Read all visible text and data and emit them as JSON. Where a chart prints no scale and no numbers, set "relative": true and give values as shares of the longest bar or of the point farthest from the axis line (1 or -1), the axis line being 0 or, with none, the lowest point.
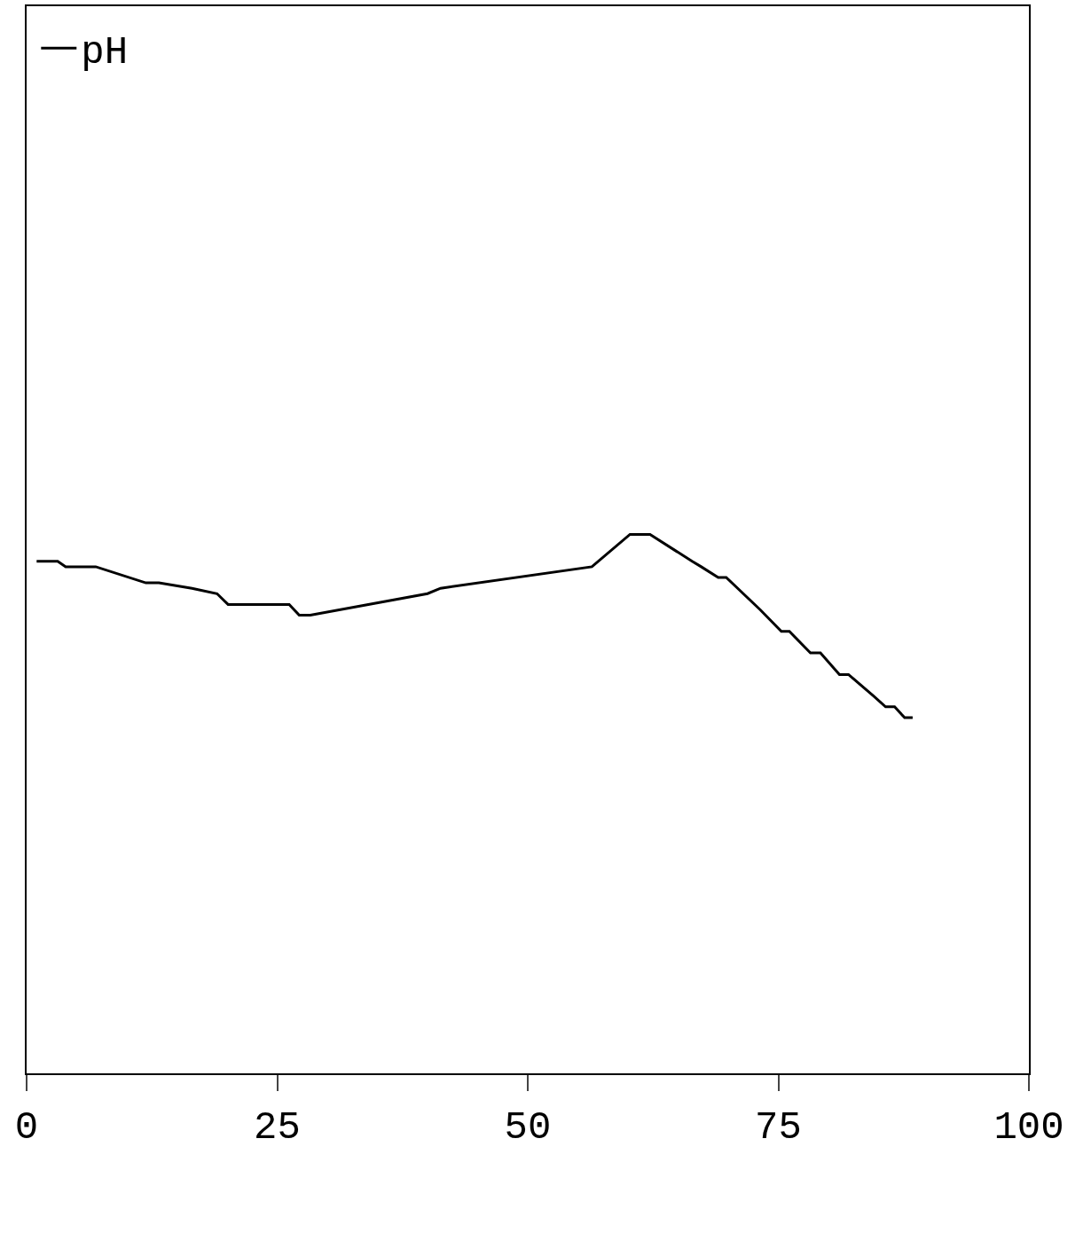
{
  "chart_data": {
    "type": "line",
    "relative": true,
    "xlim": [
      0,
      100
    ],
    "xticks": [
      0,
      25,
      50,
      75,
      100
    ],
    "legend": "top left",
    "series": [
      {
        "name": "pH",
        "color": "#000000",
        "x": [
          1.0,
          3.1,
          3.9,
          6.9,
          11.9,
          13.2,
          16.5,
          19.0,
          20.1,
          26.2,
          27.2,
          28.3,
          40.0,
          41.3,
          56.4,
          60.2,
          62.2,
          66.4,
          67.3,
          69.0,
          69.8,
          73.2,
          75.3,
          76.1,
          78.2,
          79.2,
          81.1,
          82.0,
          84.5,
          85.7,
          86.6,
          87.6,
          88.4
        ],
        "values": [
          0.95,
          0.95,
          0.94,
          0.94,
          0.91,
          0.91,
          0.9,
          0.89,
          0.87,
          0.87,
          0.85,
          0.85,
          0.89,
          0.9,
          0.94,
          1.0,
          1.0,
          0.95,
          0.94,
          0.92,
          0.92,
          0.86,
          0.82,
          0.82,
          0.78,
          0.78,
          0.74,
          0.74,
          0.7,
          0.68,
          0.68,
          0.66,
          0.66
        ]
      }
    ]
  }
}
